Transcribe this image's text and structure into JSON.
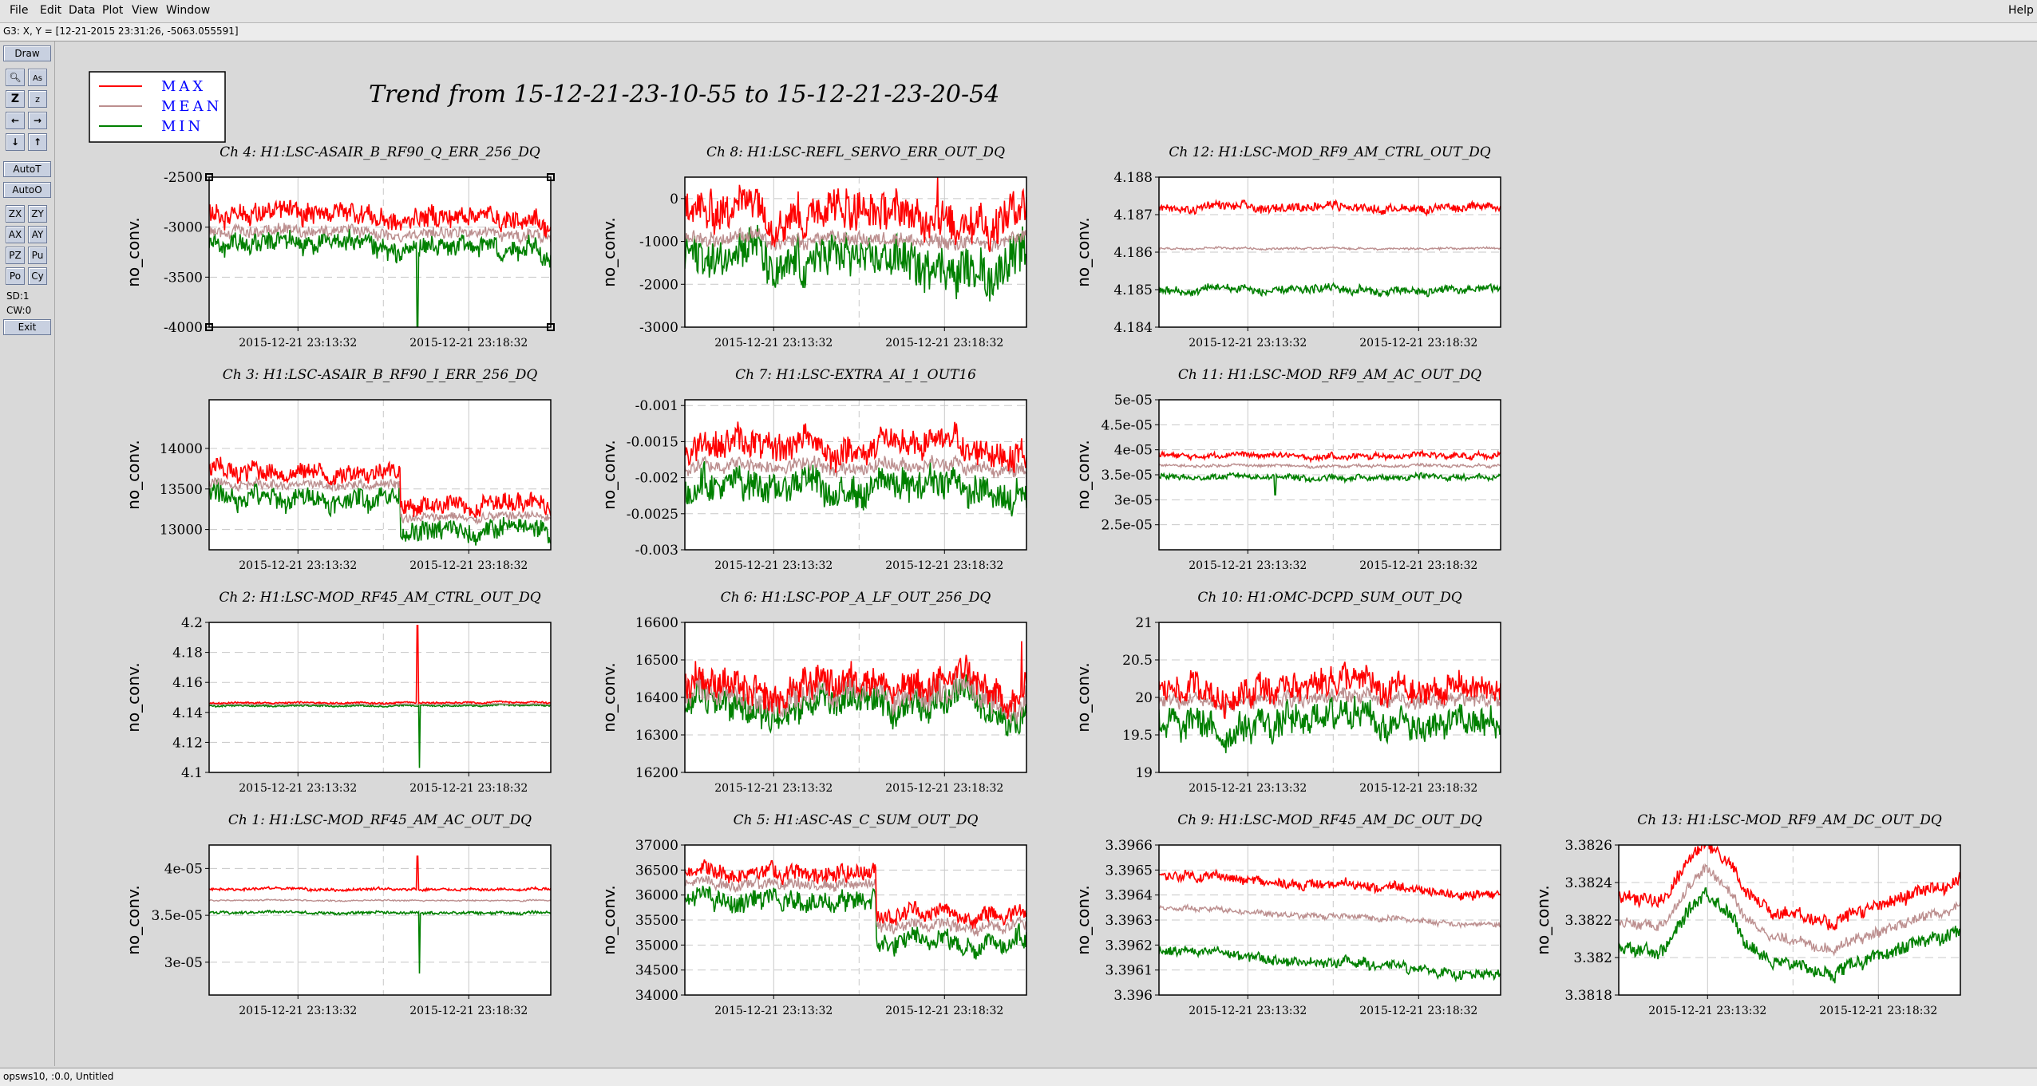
{
  "menu": {
    "items": [
      "File",
      "Edit",
      "Data",
      "Plot",
      "View",
      "Window"
    ],
    "help": "Help"
  },
  "status_top": "G3: X, Y = [12-21-2015 23:31:26, -5063.055591]",
  "status_bottom": "opsws10, :0.0, Untitled",
  "toolbar": {
    "draw": "Draw",
    "autot": "AutoT",
    "autoo": "AutoO",
    "pairs": [
      [
        "ZX",
        "ZY"
      ],
      [
        "AX",
        "AY"
      ],
      [
        "PZ",
        "Pu"
      ],
      [
        "Po",
        "Cy"
      ]
    ],
    "sd": "SD:1",
    "cw": "CW:0",
    "exit": "Exit"
  },
  "title": "Trend from 15-12-21-23-10-55 to 15-12-21-23-20-54",
  "legend": [
    "MAX",
    "MEAN",
    "MIN"
  ],
  "colors": {
    "max": "#ff0000",
    "mean": "#bc8f8f",
    "min": "#008000",
    "legend_text": "#0000ff"
  },
  "x_ticks": [
    "2015-12-21 23:13:32",
    "2015-12-21 23:18:32"
  ],
  "chart_data": [
    {
      "type": "line",
      "title": "Ch 4: H1:LSC-ASAIR_B_RF90_Q_ERR_256_DQ",
      "ylabel": "no_conv.",
      "ylim": [
        -4000,
        -2500
      ],
      "yticks": [
        "-2500",
        "-3000",
        "-3500",
        "-4000"
      ],
      "series": [
        {
          "name": "MAX",
          "level": -2880,
          "noise": 110
        },
        {
          "name": "MEAN",
          "level": -3050,
          "noise": 60
        },
        {
          "name": "MIN",
          "level": -3180,
          "noise": 110
        }
      ],
      "spikes": [
        {
          "pos": 0.61,
          "series": "MIN",
          "value": -4000
        }
      ]
    },
    {
      "type": "line",
      "title": "Ch 8: H1:LSC-REFL_SERVO_ERR_OUT_DQ",
      "ylabel": "no_conv.",
      "ylim": [
        -3000,
        500
      ],
      "yticks": [
        "0",
        "-1000",
        "-2000",
        "-3000"
      ],
      "series": [
        {
          "name": "MAX",
          "level": -300,
          "noise": 500
        },
        {
          "name": "MEAN",
          "level": -950,
          "noise": 180
        },
        {
          "name": "MIN",
          "level": -1400,
          "noise": 550
        }
      ],
      "spikes": [
        {
          "pos": 0.74,
          "series": "MAX",
          "value": 500
        }
      ]
    },
    {
      "type": "line",
      "title": "Ch 12: H1:LSC-MOD_RF9_AM_CTRL_OUT_DQ",
      "ylabel": "no_conv.",
      "ylim": [
        4.184,
        4.188
      ],
      "yticks": [
        "4.188",
        "4.187",
        "4.186",
        "4.185",
        "4.184"
      ],
      "series": [
        {
          "name": "MAX",
          "level": 4.1872,
          "noise": 0.00012
        },
        {
          "name": "MEAN",
          "level": 4.1861,
          "noise": 3e-05
        },
        {
          "name": "MIN",
          "level": 4.185,
          "noise": 0.00012
        }
      ]
    },
    {
      "type": "line",
      "title": "Ch 3: H1:LSC-ASAIR_B_RF90_I_ERR_256_DQ",
      "ylabel": "no_conv.",
      "ylim": [
        12750,
        14600
      ],
      "yticks": [
        "14000",
        "13500",
        "13000"
      ],
      "series": [
        {
          "name": "MAX",
          "level": 13700,
          "noise": 120,
          "step": -400,
          "stepPos": 0.56
        },
        {
          "name": "MEAN",
          "level": 13550,
          "noise": 60,
          "step": -400,
          "stepPos": 0.56
        },
        {
          "name": "MIN",
          "level": 13380,
          "noise": 140,
          "step": -400,
          "stepPos": 0.56
        }
      ]
    },
    {
      "type": "line",
      "title": "Ch 7: H1:LSC-EXTRA_AI_1_OUT16",
      "ylabel": "no_conv.",
      "ylim": [
        -0.003,
        -0.00092
      ],
      "yticks": [
        "-0.001",
        "-0.0015",
        "-0.002",
        "-0.0025",
        "-0.003"
      ],
      "series": [
        {
          "name": "MAX",
          "level": -0.00158,
          "noise": 0.00022
        },
        {
          "name": "MEAN",
          "level": -0.00185,
          "noise": 0.0001
        },
        {
          "name": "MIN",
          "level": -0.00215,
          "noise": 0.00024
        }
      ]
    },
    {
      "type": "line",
      "title": "Ch 11: H1:LSC-MOD_RF9_AM_AC_OUT_DQ",
      "ylabel": "no_conv.",
      "ylim": [
        2e-05,
        5e-05
      ],
      "yticks": [
        "5e-05",
        "4.5e-05",
        "4e-05",
        "3.5e-05",
        "3e-05",
        "2.5e-05"
      ],
      "series": [
        {
          "name": "MAX",
          "level": 3.88e-05,
          "noise": 6e-07
        },
        {
          "name": "MEAN",
          "level": 3.68e-05,
          "noise": 3e-07
        },
        {
          "name": "MIN",
          "level": 3.45e-05,
          "noise": 6e-07
        }
      ],
      "spikes": [
        {
          "pos": 0.34,
          "series": "MIN",
          "value": 3.1e-05
        }
      ]
    },
    {
      "type": "line",
      "title": "Ch 2: H1:LSC-MOD_RF45_AM_CTRL_OUT_DQ",
      "ylabel": "no_conv.",
      "ylim": [
        4.1,
        4.2
      ],
      "yticks": [
        "4.2",
        "4.18",
        "4.16",
        "4.14",
        "4.12",
        "4.1"
      ],
      "series": [
        {
          "name": "MAX",
          "level": 4.1465,
          "noise": 0.0006
        },
        {
          "name": "MEAN",
          "level": 4.1455,
          "noise": 0.0002
        },
        {
          "name": "MIN",
          "level": 4.1445,
          "noise": 0.0006
        }
      ],
      "spikes": [
        {
          "pos": 0.61,
          "series": "MAX",
          "value": 4.198
        },
        {
          "pos": 0.615,
          "series": "MIN",
          "value": 4.103
        }
      ]
    },
    {
      "type": "line",
      "title": "Ch 6: H1:LSC-POP_A_LF_OUT_256_DQ",
      "ylabel": "no_conv.",
      "ylim": [
        16200,
        16600
      ],
      "yticks": [
        "16600",
        "16500",
        "16400",
        "16300",
        "16200"
      ],
      "series": [
        {
          "name": "MAX",
          "level": 16430,
          "noise": 45
        },
        {
          "name": "MEAN",
          "level": 16405,
          "noise": 40
        },
        {
          "name": "MIN",
          "level": 16380,
          "noise": 45
        }
      ],
      "spikes": [
        {
          "pos": 0.985,
          "series": "MAX",
          "value": 16550
        }
      ]
    },
    {
      "type": "line",
      "title": "Ch 10: H1:OMC-DCPD_SUM_OUT_DQ",
      "ylabel": "no_conv.",
      "ylim": [
        19,
        21
      ],
      "yticks": [
        "21",
        "20.5",
        "20",
        "19.5",
        "19"
      ],
      "series": [
        {
          "name": "MAX",
          "level": 20.2,
          "noise": 0.2
        },
        {
          "name": "MEAN",
          "level": 20.0,
          "noise": 0.1
        },
        {
          "name": "MIN",
          "level": 19.75,
          "noise": 0.22
        }
      ]
    },
    {
      "type": "line",
      "title": "Ch 1: H1:LSC-MOD_RF45_AM_AC_OUT_DQ",
      "ylabel": "no_conv.",
      "ylim": [
        2.65e-05,
        4.25e-05
      ],
      "yticks": [
        "4e-05",
        "3.5e-05",
        "3e-05"
      ],
      "series": [
        {
          "name": "MAX",
          "level": 3.78e-05,
          "noise": 1.5e-07
        },
        {
          "name": "MEAN",
          "level": 3.66e-05,
          "noise": 8e-08
        },
        {
          "name": "MIN",
          "level": 3.53e-05,
          "noise": 1.5e-07
        }
      ],
      "spikes": [
        {
          "pos": 0.61,
          "series": "MAX",
          "value": 4.13e-05
        },
        {
          "pos": 0.615,
          "series": "MIN",
          "value": 2.88e-05
        }
      ]
    },
    {
      "type": "line",
      "title": "Ch 5: H1:ASC-AS_C_SUM_OUT_DQ",
      "ylabel": "no_conv.",
      "ylim": [
        34000,
        37000
      ],
      "yticks": [
        "37000",
        "36500",
        "36000",
        "35500",
        "35000",
        "34500",
        "34000"
      ],
      "series": [
        {
          "name": "MAX",
          "level": 36500,
          "noise": 180,
          "step": -850,
          "stepPos": 0.56
        },
        {
          "name": "MEAN",
          "level": 36250,
          "noise": 120,
          "step": -850,
          "stepPos": 0.56
        },
        {
          "name": "MIN",
          "level": 35950,
          "noise": 220,
          "step": -850,
          "stepPos": 0.56
        }
      ]
    },
    {
      "type": "line",
      "title": "Ch 9: H1:LSC-MOD_RF45_AM_DC_OUT_DQ",
      "ylabel": "no_conv.",
      "ylim": [
        3.396,
        3.3966
      ],
      "yticks": [
        "3.3966",
        "3.3965",
        "3.3964",
        "3.3963",
        "3.3962",
        "3.3961",
        "3.396"
      ],
      "series": [
        {
          "name": "MAX",
          "level": 3.39648,
          "noise": 2e-05,
          "trend": -8e-05
        },
        {
          "name": "MEAN",
          "level": 3.39635,
          "noise": 1.2e-05,
          "trend": -7e-05
        },
        {
          "name": "MIN",
          "level": 3.39618,
          "noise": 2e-05,
          "trend": -0.0001
        }
      ]
    },
    {
      "type": "line",
      "title": "Ch 13: H1:LSC-MOD_RF9_AM_DC_OUT_DQ",
      "ylabel": "no_conv.",
      "ylim": [
        3.3818,
        3.3826
      ],
      "yticks": [
        "3.3826",
        "3.3824",
        "3.3822",
        "3.382",
        "3.3818"
      ],
      "series": [
        {
          "name": "MAX",
          "level": 3.38232,
          "noise": 4e-05
        },
        {
          "name": "MEAN",
          "level": 3.38218,
          "noise": 3e-05
        },
        {
          "name": "MIN",
          "level": 3.38205,
          "noise": 4e-05
        }
      ],
      "hump": true
    }
  ]
}
